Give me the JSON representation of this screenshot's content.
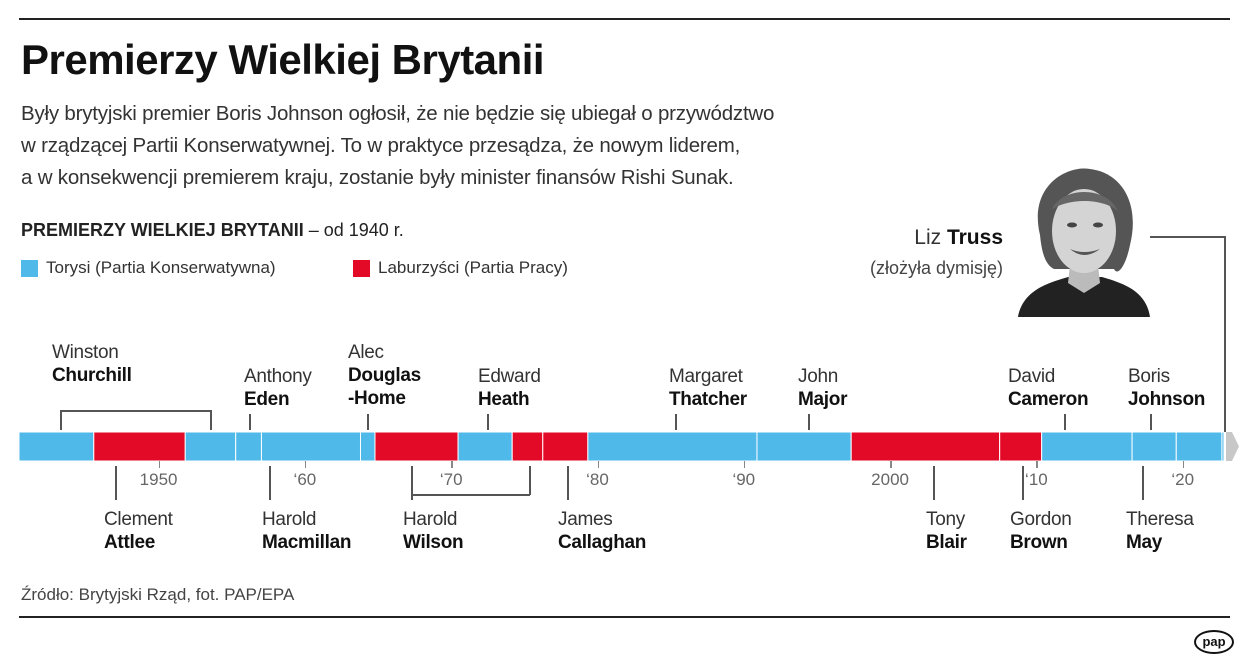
{
  "title": "Premierzy Wielkiej Brytanii",
  "lead": [
    "Były brytyjski premier Boris Johnson ogłosił, że nie będzie się ubiegał o przywództwo",
    "w rządzącej Partii Konserwatywnej. To w praktyce przesądza, że nowym liderem,",
    "a w konsekwencji premierem kraju, zostanie były minister finansów Rishi Sunak."
  ],
  "subtitle": {
    "bold": "PREMIERZY WIELKIEJ BRYTANII",
    "rest": " – od 1940 r."
  },
  "legend": [
    {
      "label": "Torysi (Partia Konserwatywna)",
      "color": "#4fb9ea"
    },
    {
      "label": "Laburzyści (Partia Pracy)",
      "color": "#e30a27"
    }
  ],
  "featured": {
    "first": "Liz",
    "last": "Truss",
    "note": "(złożyła dymisję)"
  },
  "prime_ministers": [
    {
      "first": "Winston",
      "last": "Churchill"
    },
    {
      "first": "Clement",
      "last": "Attlee"
    },
    {
      "first": "Anthony",
      "last": "Eden"
    },
    {
      "first": "Harold",
      "last": "Macmillan"
    },
    {
      "first": "Alec",
      "last": "Douglas -Home"
    },
    {
      "first": "Harold",
      "last": "Wilson"
    },
    {
      "first": "Edward",
      "last": "Heath"
    },
    {
      "first": "James",
      "last": "Callaghan"
    },
    {
      "first": "Margaret",
      "last": "Thatcher"
    },
    {
      "first": "John",
      "last": "Major"
    },
    {
      "first": "Tony",
      "last": "Blair"
    },
    {
      "first": "Gordon",
      "last": "Brown"
    },
    {
      "first": "David",
      "last": "Cameron"
    },
    {
      "first": "Theresa",
      "last": "May"
    },
    {
      "first": "Boris",
      "last": "Johnson"
    }
  ],
  "timeline": {
    "segments": [
      {
        "start": 1940.36,
        "end": 1945.57,
        "party": "tory"
      },
      {
        "start": 1945.57,
        "end": 1951.82,
        "party": "labour"
      },
      {
        "start": 1951.82,
        "end": 1955.27,
        "party": "tory"
      },
      {
        "start": 1955.27,
        "end": 1957.03,
        "party": "tory"
      },
      {
        "start": 1957.03,
        "end": 1963.8,
        "party": "tory"
      },
      {
        "start": 1963.8,
        "end": 1964.79,
        "party": "tory"
      },
      {
        "start": 1964.79,
        "end": 1970.47,
        "party": "labour"
      },
      {
        "start": 1970.47,
        "end": 1974.17,
        "party": "tory"
      },
      {
        "start": 1974.17,
        "end": 1976.26,
        "party": "labour"
      },
      {
        "start": 1976.26,
        "end": 1979.34,
        "party": "labour"
      },
      {
        "start": 1979.34,
        "end": 1990.9,
        "party": "tory"
      },
      {
        "start": 1990.9,
        "end": 1997.34,
        "party": "tory"
      },
      {
        "start": 1997.34,
        "end": 2007.49,
        "party": "labour"
      },
      {
        "start": 2007.49,
        "end": 2010.36,
        "party": "labour"
      },
      {
        "start": 2010.36,
        "end": 2016.54,
        "party": "tory"
      },
      {
        "start": 2016.54,
        "end": 2019.56,
        "party": "tory"
      },
      {
        "start": 2019.56,
        "end": 2022.68,
        "party": "tory"
      },
      {
        "start": 2022.68,
        "end": 2022.82,
        "party": "tory"
      }
    ],
    "ticks": [
      {
        "year": 1950,
        "label": "1950"
      },
      {
        "year": 1960,
        "label": "‘60"
      },
      {
        "year": 1970,
        "label": "‘70"
      },
      {
        "year": 1980,
        "label": "‘80"
      },
      {
        "year": 1990,
        "label": "‘90"
      },
      {
        "year": 2000,
        "label": "2000"
      },
      {
        "year": 2010,
        "label": "‘10"
      },
      {
        "year": 2020,
        "label": "‘20"
      }
    ],
    "colors": {
      "tory": "#4fb9ea",
      "labour": "#e30a27",
      "future": "#c8c8c8"
    }
  },
  "source": "Źródło: Brytyjski Rząd, fot. PAP/EPA",
  "logo": "pap"
}
